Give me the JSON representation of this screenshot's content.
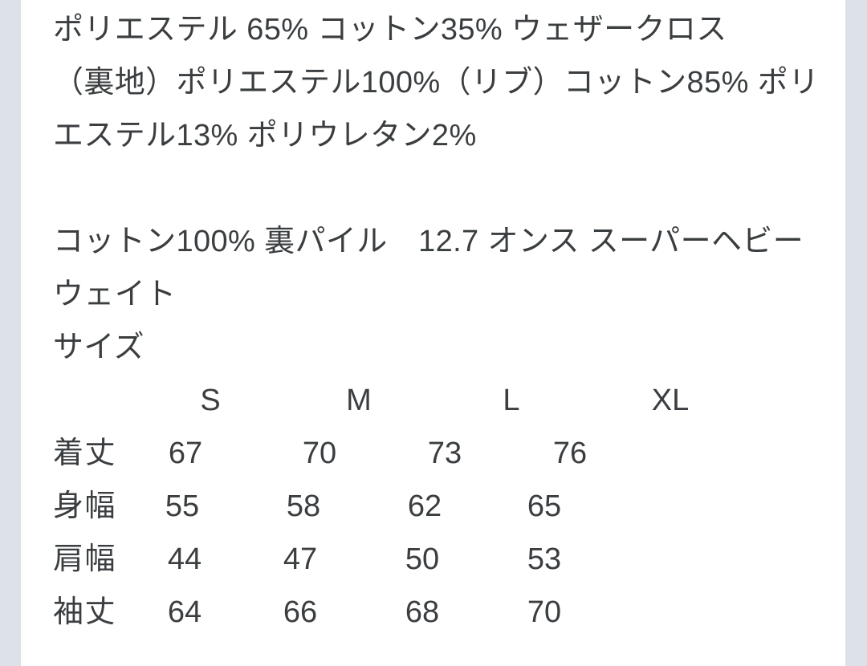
{
  "theme": {
    "background": "#ffffff",
    "side_margin_color": "#dde2e8",
    "text_color": "#3b3e40"
  },
  "fabric_info": {
    "outer": {
      "lines": [
        "ポリエステル 65% コットン35% ウェザークロス",
        "（裏地）ポリエステル100%（リブ）コットン85% ポリ",
        "エステル13% ポリウレタン2%"
      ]
    },
    "inner": {
      "lines": [
        "コットン100% 裏パイル　12.7 オンス スーパーヘビー",
        "ウェイト"
      ]
    }
  },
  "size_section": {
    "title": "サイズ",
    "columns": [
      "S",
      "M",
      "L",
      "XL"
    ],
    "rows": [
      {
        "label": "着丈",
        "values": [
          "67",
          "70",
          "73",
          "76"
        ]
      },
      {
        "label": "身幅",
        "values": [
          "55",
          "58",
          "62",
          "65"
        ]
      },
      {
        "label": "肩幅",
        "values": [
          "44",
          "47",
          "50",
          "53"
        ]
      },
      {
        "label": "袖丈",
        "values": [
          "64",
          "66",
          "68",
          "70"
        ]
      }
    ]
  }
}
